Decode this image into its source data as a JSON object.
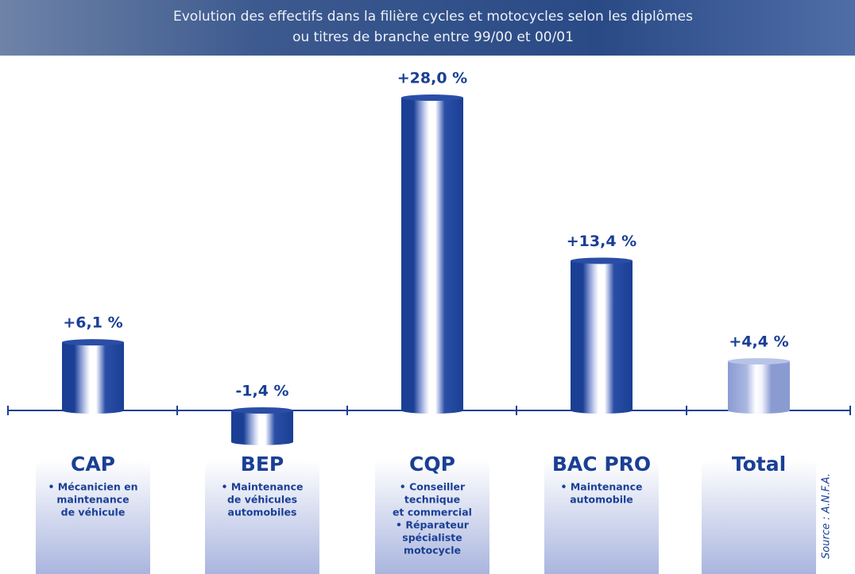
{
  "chart_data": {
    "type": "bar",
    "title": [
      "Evolution des effectifs dans la filière cycles et motocycles selon les diplômes",
      "ou titres de branche entre 99/00 et 00/01"
    ],
    "categories": [
      "CAP",
      "BEP",
      "CQP",
      "BAC PRO",
      "Total"
    ],
    "values": [
      6.1,
      -1.4,
      28.0,
      13.4,
      4.4
    ],
    "value_labels": [
      "+6,1 %",
      "-1,4 %",
      "+28,0 %",
      "+13,4 %",
      "+4,4 %"
    ],
    "descriptions": [
      [
        "• Mécanicien en",
        "maintenance",
        "de véhicule"
      ],
      [
        "• Maintenance",
        "de véhicules",
        "automobiles"
      ],
      [
        "• Conseiller",
        "technique",
        "et commercial",
        "• Réparateur",
        "spécialiste",
        "motocycle"
      ],
      [
        "• Maintenance",
        "automobile"
      ],
      []
    ],
    "source": "Source : A.N.F.A."
  }
}
